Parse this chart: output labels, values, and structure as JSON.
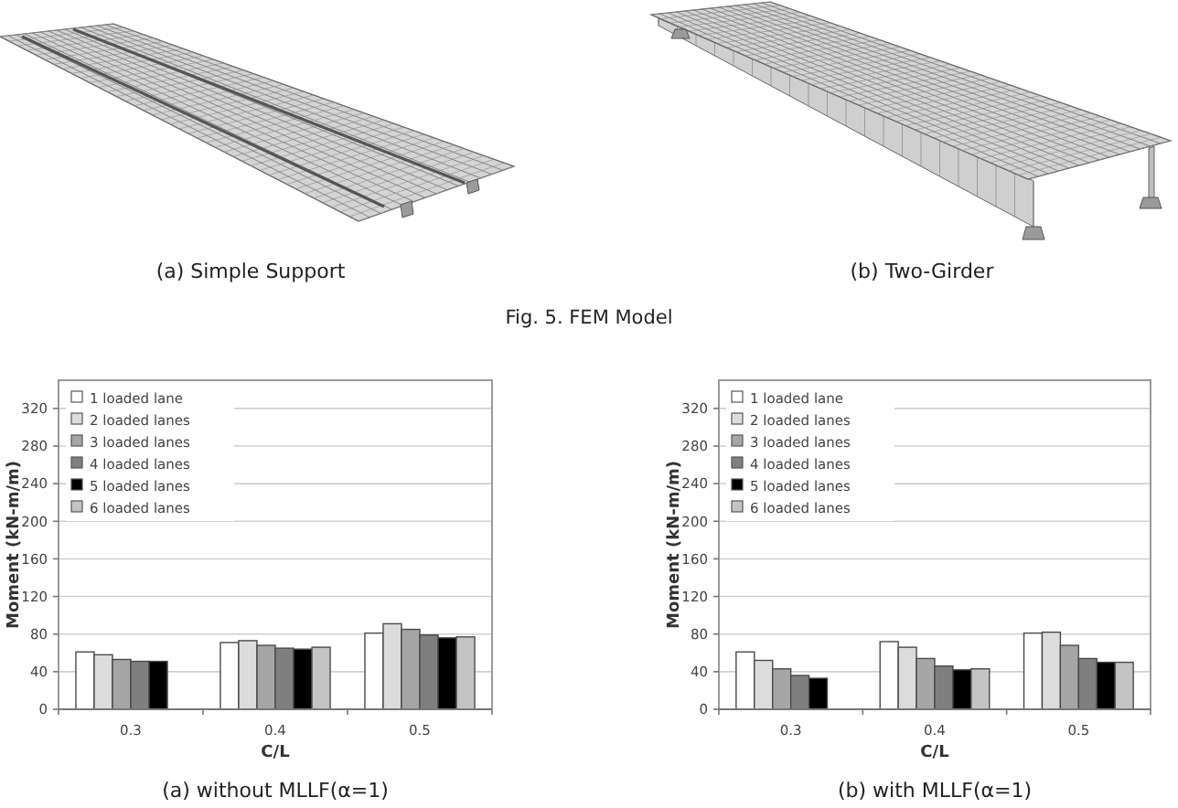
{
  "chart_data": [
    {
      "type": "other",
      "title": "Fig. 5. FEM Model",
      "annotations": [
        "(a) Simple Support",
        "(b) Two-Girder"
      ]
    },
    {
      "type": "bar",
      "title": "(a) without MLLF(α=1)",
      "xlabel": "C/L",
      "ylabel": "Moment (kN-m/m)",
      "categories": [
        "0.3",
        "0.4",
        "0.5"
      ],
      "series": [
        {
          "name": "1 loaded lane",
          "color": "#ffffff",
          "values": [
            61,
            71,
            81
          ]
        },
        {
          "name": "2 loaded lanes",
          "color": "#dcdcdc",
          "values": [
            58,
            73,
            91
          ]
        },
        {
          "name": "3 loaded lanes",
          "color": "#a6a6a6",
          "values": [
            53,
            68,
            85
          ]
        },
        {
          "name": "4 loaded lanes",
          "color": "#7f7f7f",
          "values": [
            51,
            65,
            79
          ]
        },
        {
          "name": "5 loaded lanes",
          "color": "#000000",
          "values": [
            51,
            64,
            76
          ]
        },
        {
          "name": "6 loaded lanes",
          "color": "#c4c4c4",
          "values": [
            null,
            66,
            77
          ]
        }
      ],
      "ylim": [
        0,
        350
      ],
      "yticks": [
        0,
        40,
        80,
        120,
        160,
        200,
        240,
        280,
        320
      ],
      "grid": "y",
      "legend": "top left"
    },
    {
      "type": "bar",
      "title": "(b) with MLLF(α=1)",
      "xlabel": "C/L",
      "ylabel": "Moment (kN-m/m)",
      "categories": [
        "0.3",
        "0.4",
        "0.5"
      ],
      "series": [
        {
          "name": "1 loaded lane",
          "color": "#ffffff",
          "values": [
            61,
            72,
            81
          ]
        },
        {
          "name": "2 loaded lanes",
          "color": "#dcdcdc",
          "values": [
            52,
            66,
            82
          ]
        },
        {
          "name": "3 loaded lanes",
          "color": "#a6a6a6",
          "values": [
            43,
            54,
            68
          ]
        },
        {
          "name": "4 loaded lanes",
          "color": "#7f7f7f",
          "values": [
            36,
            46,
            54
          ]
        },
        {
          "name": "5 loaded lanes",
          "color": "#000000",
          "values": [
            33,
            42,
            50
          ]
        },
        {
          "name": "6 loaded lanes",
          "color": "#c4c4c4",
          "values": [
            null,
            43,
            50
          ]
        }
      ],
      "ylim": [
        0,
        350
      ],
      "yticks": [
        0,
        40,
        80,
        120,
        160,
        200,
        240,
        280,
        320
      ],
      "grid": "y",
      "legend": "top left"
    }
  ]
}
